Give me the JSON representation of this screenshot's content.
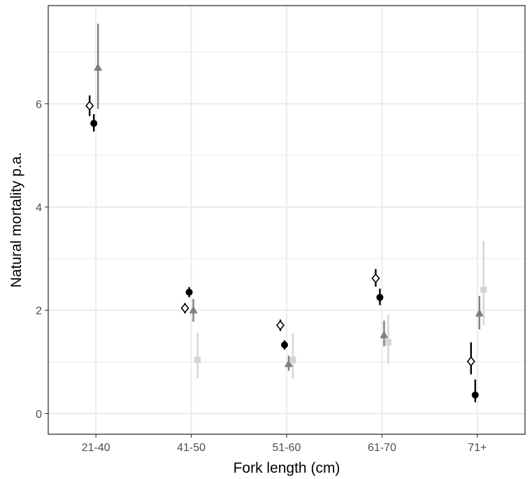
{
  "chart_data": {
    "type": "scatter",
    "xlabel": "Fork length (cm)",
    "ylabel": "Natural mortality p.a.",
    "categories": [
      "21-40",
      "41-50",
      "51-60",
      "61-70",
      "71+"
    ],
    "ylim": [
      -0.4,
      7.9
    ],
    "yticks": [
      0,
      2,
      4,
      6
    ],
    "yticks_labels": [
      "0",
      "2",
      "4",
      "6"
    ],
    "grid": true,
    "legend": "none",
    "colors": {
      "panel_border": "#333333",
      "grid": "#ebebeb",
      "tick_text": "#4d4d4d"
    },
    "series": [
      {
        "marker": "diamond-open",
        "color": "#000000",
        "values": [
          5.96,
          2.04,
          1.71,
          2.62,
          1.01
        ],
        "lower": [
          5.76,
          1.94,
          1.6,
          2.46,
          0.76
        ],
        "upper": [
          6.16,
          2.14,
          1.82,
          2.8,
          1.38
        ]
      },
      {
        "marker": "circle",
        "color": "#000000",
        "values": [
          5.62,
          2.35,
          1.33,
          2.25,
          0.36
        ],
        "lower": [
          5.46,
          2.25,
          1.24,
          2.1,
          0.22
        ],
        "upper": [
          5.8,
          2.45,
          1.42,
          2.42,
          0.66
        ]
      },
      {
        "marker": "triangle",
        "color": "#808080",
        "values": [
          6.7,
          2.0,
          0.96,
          1.52,
          1.94
        ],
        "lower": [
          5.9,
          1.78,
          0.83,
          1.3,
          1.63
        ],
        "upper": [
          7.55,
          2.22,
          1.12,
          1.8,
          2.28
        ]
      },
      {
        "marker": "square",
        "color": "#d4d4d4",
        "values": [
          null,
          1.04,
          1.04,
          1.38,
          2.4
        ],
        "lower": [
          null,
          0.68,
          0.68,
          0.96,
          1.72
        ],
        "upper": [
          null,
          1.56,
          1.56,
          1.92,
          3.34
        ]
      }
    ]
  }
}
